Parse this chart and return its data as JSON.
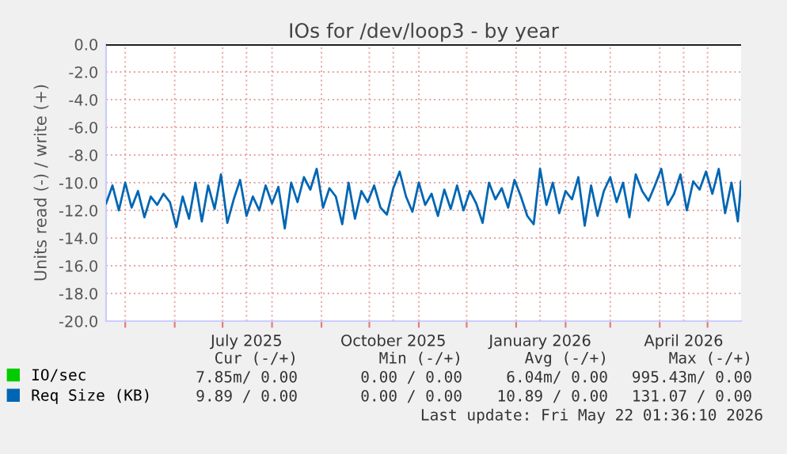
{
  "chart_data": {
    "type": "line",
    "title": "IOs for /dev/loop3 - by year",
    "ylabel": "Units read (-) / write (+)",
    "x": [
      "2025-04-19",
      "2025-04-23",
      "2025-04-27",
      "2025-05-01",
      "2025-05-05",
      "2025-05-09",
      "2025-05-13",
      "2025-05-17",
      "2025-05-21",
      "2025-05-25",
      "2025-05-29",
      "2025-06-02",
      "2025-06-06",
      "2025-06-10",
      "2025-06-14",
      "2025-06-18",
      "2025-06-22",
      "2025-06-26",
      "2025-06-30",
      "2025-07-04",
      "2025-07-08",
      "2025-07-12",
      "2025-07-16",
      "2025-07-20",
      "2025-07-24",
      "2025-07-28",
      "2025-08-01",
      "2025-08-05",
      "2025-08-09",
      "2025-08-13",
      "2025-08-17",
      "2025-08-21",
      "2025-08-25",
      "2025-08-29",
      "2025-09-02",
      "2025-09-06",
      "2025-09-10",
      "2025-09-14",
      "2025-09-18",
      "2025-09-22",
      "2025-09-26",
      "2025-09-30",
      "2025-10-04",
      "2025-10-08",
      "2025-10-12",
      "2025-10-16",
      "2025-10-20",
      "2025-10-24",
      "2025-10-28",
      "2025-11-01",
      "2025-11-05",
      "2025-11-09",
      "2025-11-13",
      "2025-11-17",
      "2025-11-21",
      "2025-11-25",
      "2025-11-29",
      "2025-12-03",
      "2025-12-07",
      "2025-12-11",
      "2025-12-15",
      "2025-12-19",
      "2025-12-23",
      "2025-12-27",
      "2025-12-31",
      "2026-01-04",
      "2026-01-08",
      "2026-01-12",
      "2026-01-16",
      "2026-01-20",
      "2026-01-24",
      "2026-01-28",
      "2026-02-01",
      "2026-02-05",
      "2026-02-09",
      "2026-02-13",
      "2026-02-17",
      "2026-02-21",
      "2026-02-25",
      "2026-03-01",
      "2026-03-05",
      "2026-03-09",
      "2026-03-13",
      "2026-03-17",
      "2026-03-21",
      "2026-03-25",
      "2026-03-29",
      "2026-04-02",
      "2026-04-06",
      "2026-04-10",
      "2026-04-14",
      "2026-04-18",
      "2026-04-22",
      "2026-04-26",
      "2026-04-30",
      "2026-05-04",
      "2026-05-08",
      "2026-05-12",
      "2026-05-16",
      "2026-05-20",
      "2026-05-22"
    ],
    "series": [
      {
        "name": "IO/sec",
        "color": "#00cc00",
        "values": [
          null,
          null,
          null,
          null,
          null,
          null,
          null,
          null,
          null,
          null,
          null,
          null,
          null,
          null,
          null,
          null,
          null,
          null,
          null,
          null,
          null,
          null,
          null,
          null,
          null,
          null,
          null,
          null,
          null,
          null,
          null,
          null,
          null,
          null,
          null,
          null,
          null,
          null,
          null,
          null,
          null,
          null,
          null,
          null,
          null,
          null,
          null,
          null,
          null,
          null,
          null,
          null,
          null,
          null,
          null,
          null,
          null,
          null,
          null,
          null,
          null,
          null,
          null,
          null,
          null,
          null,
          null,
          null,
          null,
          null,
          null,
          null,
          null,
          null,
          null,
          null,
          null,
          null,
          null,
          null,
          null,
          null,
          null,
          null,
          null,
          null,
          null,
          null,
          null,
          null,
          null,
          null,
          null,
          null,
          null,
          null,
          null,
          null,
          null,
          null,
          null
        ]
      },
      {
        "name": "Req Size (KB)",
        "color": "#0066b3",
        "values": [
          -11.5,
          -10.2,
          -12.0,
          -10.0,
          -11.8,
          -10.6,
          -12.5,
          -11.0,
          -11.6,
          -10.8,
          -11.4,
          -13.2,
          -11.0,
          -12.6,
          -10.0,
          -12.8,
          -10.2,
          -11.9,
          -9.4,
          -12.9,
          -11.2,
          -9.8,
          -12.4,
          -11.0,
          -12.0,
          -10.2,
          -11.5,
          -10.3,
          -13.3,
          -10.0,
          -11.4,
          -9.6,
          -10.5,
          -9.0,
          -11.8,
          -10.4,
          -11.0,
          -13.0,
          -10.0,
          -12.6,
          -10.6,
          -11.4,
          -10.2,
          -11.8,
          -12.3,
          -10.4,
          -9.2,
          -11.0,
          -12.1,
          -10.0,
          -11.6,
          -10.8,
          -12.4,
          -10.5,
          -11.9,
          -10.2,
          -12.0,
          -10.6,
          -11.5,
          -12.9,
          -10.0,
          -11.2,
          -10.4,
          -11.8,
          -9.8,
          -11.0,
          -12.4,
          -13.0,
          -9.0,
          -11.6,
          -10.0,
          -12.2,
          -10.6,
          -11.2,
          -9.6,
          -13.1,
          -10.2,
          -12.4,
          -10.6,
          -9.6,
          -11.4,
          -10.0,
          -12.5,
          -9.4,
          -10.6,
          -11.3,
          -10.2,
          -9.0,
          -11.6,
          -10.8,
          -9.4,
          -12.0,
          -9.9,
          -10.5,
          -9.2,
          -10.8,
          -9.0,
          -12.2,
          -10.0,
          -12.8,
          -9.9
        ]
      }
    ],
    "xlim": [
      "2025-04-19",
      "2026-05-22"
    ],
    "xticks": [
      {
        "value": "2025-05-01",
        "label": null
      },
      {
        "value": "2025-06-01",
        "label": null
      },
      {
        "value": "2025-07-01",
        "label": null
      },
      {
        "value": "2025-07-16",
        "label": "July 2025"
      },
      {
        "value": "2025-08-01",
        "label": null
      },
      {
        "value": "2025-09-01",
        "label": null
      },
      {
        "value": "2025-10-01",
        "label": null
      },
      {
        "value": "2025-10-16",
        "label": "October 2025"
      },
      {
        "value": "2025-11-01",
        "label": null
      },
      {
        "value": "2025-12-01",
        "label": null
      },
      {
        "value": "2026-01-01",
        "label": null
      },
      {
        "value": "2026-01-16",
        "label": "January 2026"
      },
      {
        "value": "2026-02-01",
        "label": null
      },
      {
        "value": "2026-03-01",
        "label": null
      },
      {
        "value": "2026-04-01",
        "label": null
      },
      {
        "value": "2026-04-16",
        "label": "April 2026"
      },
      {
        "value": "2026-05-01",
        "label": null
      }
    ],
    "ylim": [
      -20,
      0
    ],
    "yticks": [
      {
        "value": 0,
        "label": "0.0"
      },
      {
        "value": -2,
        "label": "-2.0"
      },
      {
        "value": -4,
        "label": "-4.0"
      },
      {
        "value": -6,
        "label": "-6.0"
      },
      {
        "value": -8,
        "label": "-8.0"
      },
      {
        "value": -10,
        "label": "-10.0"
      },
      {
        "value": -12,
        "label": "-12.0"
      },
      {
        "value": -14,
        "label": "-14.0"
      },
      {
        "value": -16,
        "label": "-16.0"
      },
      {
        "value": -18,
        "label": "-18.0"
      },
      {
        "value": -20,
        "label": "-20.0"
      }
    ],
    "grid": true,
    "ref_lines": [
      {
        "axis": "y",
        "value": 0,
        "color": "#000000"
      }
    ],
    "legend": "bottom left",
    "annotations": [
      "Cur (-/+)",
      "Min (-/+)",
      "Avg (-/+)",
      "Max (-/+)",
      "7.85m/ 0.00",
      "0.00 / 0.00",
      "6.04m/ 0.00",
      "995.43m/ 0.00",
      "9.89 / 0.00",
      "0.00 / 0.00",
      "10.89 / 0.00",
      "131.07 / 0.00",
      "Last update: Fri May 22 01:36:10 2026"
    ]
  }
}
